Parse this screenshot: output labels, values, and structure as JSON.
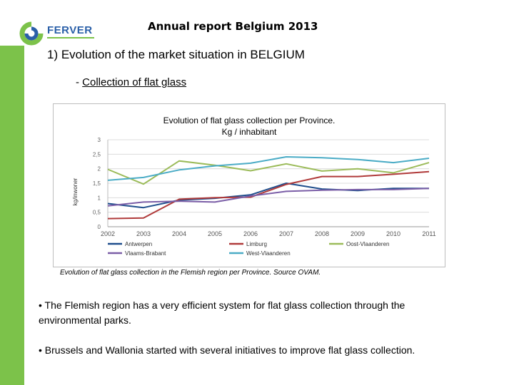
{
  "header": {
    "logo_text": "FERVER",
    "report_title": "Annual report Belgium 2013"
  },
  "section_title": "1) Evolution of the market situation in BELGIUM",
  "subsection": {
    "dash": "- ",
    "label": "Collection of flat glass"
  },
  "chart_data": {
    "type": "line",
    "title_line1": "Evolution of flat glass collection per Province.",
    "title_line2": "Kg / inhabitant",
    "ylabel": "kg/inwoner",
    "ylim": [
      0,
      3
    ],
    "yticks": [
      "0",
      "0,5",
      "1",
      "1,5",
      "2",
      "2,5",
      "3"
    ],
    "x": [
      "2002",
      "2003",
      "2004",
      "2005",
      "2006",
      "2007",
      "2008",
      "2009",
      "2010",
      "2011"
    ],
    "series": [
      {
        "name": "Antwerpen",
        "color": "#1f4e8c",
        "values": [
          0.8,
          0.66,
          0.92,
          0.98,
          1.1,
          1.5,
          1.3,
          1.25,
          1.32,
          1.32
        ]
      },
      {
        "name": "Limburg",
        "color": "#b03a3a",
        "values": [
          0.28,
          0.3,
          0.95,
          1.0,
          1.02,
          1.46,
          1.73,
          1.73,
          1.81,
          1.9
        ]
      },
      {
        "name": "Oost-Vlaanderen",
        "color": "#9bbb59",
        "values": [
          1.98,
          1.47,
          2.27,
          2.12,
          1.93,
          2.17,
          1.92,
          2.0,
          1.86,
          2.21
        ]
      },
      {
        "name": "Vlaams-Brabant",
        "color": "#7b5ea7",
        "values": [
          0.72,
          0.85,
          0.88,
          0.85,
          1.06,
          1.22,
          1.26,
          1.28,
          1.28,
          1.32
        ]
      },
      {
        "name": "West-Vlaanderen",
        "color": "#4bacc6",
        "values": [
          1.6,
          1.7,
          1.96,
          2.1,
          2.19,
          2.41,
          2.38,
          2.32,
          2.21,
          2.36
        ]
      }
    ],
    "grid": true,
    "legend_position": "bottom"
  },
  "caption": "Evolution of flat glass collection in the Flemish region per Province.  Source OVAM.",
  "bullets": [
    "• The Flemish region has a very efficient system for flat glass collection through the environmental parks.",
    "• Brussels and Wallonia started with several initiatives to improve flat glass collection."
  ]
}
